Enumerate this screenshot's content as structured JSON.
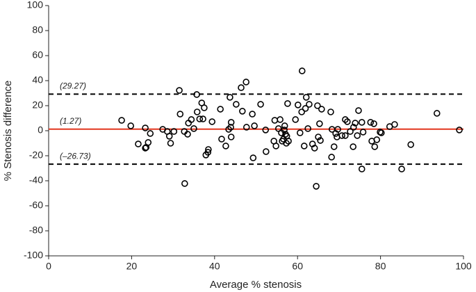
{
  "chart_data": {
    "type": "scatter",
    "x_label": "Average % stenosis",
    "y_label": "% Stenosis difference",
    "xlim": [
      0,
      100
    ],
    "ylim": [
      -100,
      100
    ],
    "xticks": [
      0,
      20,
      40,
      60,
      80,
      100
    ],
    "yticks": [
      -100,
      -80,
      -60,
      -40,
      -20,
      0,
      20,
      40,
      60,
      80,
      100
    ],
    "marker_color": "#000000",
    "reference_lines": [
      {
        "value": 29.27,
        "label": "(29.27)",
        "style": "dashed",
        "color": "#000000"
      },
      {
        "value": 1.27,
        "label": "(1.27)",
        "style": "solid",
        "color": "#e2361f"
      },
      {
        "value": -26.73,
        "label": "(–26.73)",
        "style": "dashed",
        "color": "#000000"
      }
    ],
    "x": [
      17.6,
      19.8,
      21.6,
      23.3,
      23.3,
      23.5,
      24,
      24.5,
      27.5,
      28.6,
      29.1,
      29.4,
      30.2,
      31.5,
      31.7,
      32.7,
      32.8,
      33.5,
      33.7,
      34.4,
      35,
      35.7,
      35.8,
      36.4,
      36.9,
      37.2,
      37.5,
      37.9,
      38.4,
      38.5,
      39.4,
      41.4,
      41.7,
      42.7,
      43.4,
      43.7,
      43.9,
      44,
      44,
      45.2,
      46.4,
      46.7,
      47.6,
      47.7,
      49.1,
      49.3,
      49.6,
      51.1,
      52.3,
      52.4,
      54.3,
      54.5,
      54.8,
      55.4,
      55.8,
      56.1,
      56.3,
      56.6,
      56.8,
      56.9,
      57.1,
      57.3,
      57.4,
      57.6,
      57.8,
      59.5,
      60.1,
      60.6,
      61,
      61.1,
      61.6,
      61.9,
      62.1,
      62.5,
      62.8,
      63.6,
      64.1,
      64.5,
      64.8,
      65,
      65.3,
      65.5,
      65.8,
      68,
      68.2,
      68.3,
      68.8,
      69.2,
      69.5,
      69.7,
      70.7,
      71.5,
      71.5,
      72,
      72.7,
      73.4,
      73.5,
      73.9,
      74.4,
      74.7,
      75.5,
      75.5,
      75.8,
      77.6,
      77.9,
      78.4,
      78.6,
      79.1,
      79.9,
      80.2,
      82.2,
      83.4,
      85.1,
      87.3,
      93.6,
      99
    ],
    "values": [
      8.3,
      3.9,
      -10.6,
      2.2,
      -13.9,
      -13.3,
      -9.4,
      -2.2,
      1.1,
      -0.6,
      -4.4,
      -10,
      -0.6,
      32.2,
      13.3,
      -0.6,
      -42.2,
      -2.8,
      6.1,
      8.9,
      1.7,
      28.9,
      15,
      9.4,
      22.2,
      9.4,
      18.3,
      -19.4,
      -17.2,
      -15,
      7.2,
      17.2,
      -6.7,
      -12.2,
      1.1,
      26.7,
      2.8,
      6.7,
      -5,
      21.1,
      34.4,
      15.6,
      38.9,
      2.8,
      13.3,
      -21.7,
      3.9,
      21.1,
      0.6,
      -16.7,
      -8.3,
      8.3,
      -12.2,
      1.7,
      8.9,
      -1.7,
      -8.3,
      -6.7,
      0.6,
      3.9,
      -2.8,
      -10,
      -4.4,
      21.7,
      -8.3,
      8.9,
      20.6,
      -1.7,
      15,
      47.8,
      -12.2,
      17.8,
      26.7,
      1.7,
      21.1,
      -10.6,
      -13.9,
      -44.4,
      20,
      -5,
      5.6,
      -7.8,
      17.2,
      15,
      -21.1,
      1.1,
      -12.8,
      -2.2,
      -5,
      1.1,
      -3.9,
      8.9,
      -3.9,
      7.2,
      -0.6,
      -12.8,
      2.8,
      6.1,
      -3.9,
      16.1,
      6.7,
      -30.6,
      -1.1,
      6.7,
      -8.3,
      5.6,
      -12.8,
      -7.2,
      -1.1,
      -1.7,
      3.3,
      5,
      -30.6,
      -11.1,
      13.9,
      0.6
    ]
  }
}
